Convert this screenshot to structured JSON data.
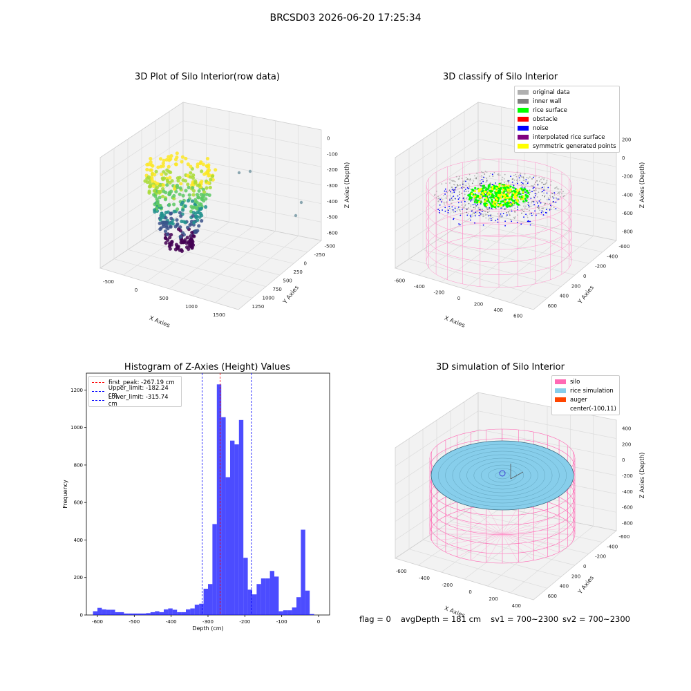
{
  "figure_title": "BRCSD03 2026-06-20 17:25:34",
  "panels": {
    "raw": {
      "title": "3D Plot of Silo Interior(row data)",
      "x_label": "X Axies",
      "y_label": "Y Axies",
      "z_label": "Z Axies (Depth)",
      "x_ticks": [
        "-500",
        "0",
        "500",
        "1000",
        "1500"
      ],
      "y_ticks": [
        "-500",
        "-250",
        "0",
        "250",
        "500",
        "750",
        "1000",
        "1250"
      ],
      "z_ticks": [
        "0",
        "-100",
        "-200",
        "-300",
        "-400",
        "-500",
        "-600"
      ]
    },
    "classify": {
      "title": "3D classify of Silo Interior",
      "x_label": "X Axies",
      "y_label": "Y Axies",
      "z_label": "Z Axies (Depth)",
      "x_ticks": [
        "-600",
        "-400",
        "-200",
        "0",
        "200",
        "400",
        "600"
      ],
      "y_ticks": [
        "-600",
        "-400",
        "-200",
        "0",
        "200",
        "400",
        "600"
      ],
      "z_ticks": [
        "200",
        "0",
        "-200",
        "-400",
        "-600",
        "-800"
      ],
      "legend": [
        {
          "label": "original data",
          "color": "#b0b0b0"
        },
        {
          "label": "inner wall",
          "color": "#808080"
        },
        {
          "label": "rice surface",
          "color": "#00ff00"
        },
        {
          "label": "obstacle",
          "color": "#ff0000"
        },
        {
          "label": "noise",
          "color": "#0000ff"
        },
        {
          "label": "interpolated rice surface",
          "color": "#800080"
        },
        {
          "label": "symmetric generated points",
          "color": "#ffff00"
        }
      ]
    },
    "histogram": {
      "title": "Histogram of Z-Axies (Height) Values",
      "legend": [
        {
          "label": "first_peak: -267.19 cm",
          "color": "#ff0000"
        },
        {
          "label": "Upper_limit: -182.24 cm",
          "color": "#0000ff"
        },
        {
          "label": "Lower_limit: -315.74 cm",
          "color": "#0000ff"
        }
      ]
    },
    "simulation": {
      "title": "3D simulation of Silo Interior",
      "x_label": "X Axies",
      "y_label": "Y Axies",
      "z_label": "Z Axies (Depth)",
      "x_ticks": [
        "-600",
        "-400",
        "-200",
        "0",
        "200",
        "400"
      ],
      "y_ticks": [
        "-600",
        "-400",
        "-200",
        "0",
        "200",
        "400",
        "600"
      ],
      "z_ticks": [
        "400",
        "200",
        "0",
        "-200",
        "-400",
        "-600",
        "-800"
      ],
      "legend": [
        {
          "label": "silo",
          "color": "#ff69b4"
        },
        {
          "label": "rice simulation",
          "color": "#87ceeb"
        },
        {
          "label": "auger",
          "color": "#ff4500"
        },
        {
          "label": "center(-100,11)",
          "color": ""
        }
      ]
    }
  },
  "status": {
    "flag": "flag = 0",
    "avg_depth": "avgDepth = 181 cm",
    "sv1": "sv1 = 700~2300",
    "sv2": "sv2 = 700~2300"
  },
  "chart_data": {
    "type": "bar",
    "title": "Histogram of Z-Axies (Height) Values",
    "xlabel": "Depth (cm)",
    "ylabel": "Frequency",
    "xlim": [
      -630,
      30
    ],
    "ylim": [
      0,
      1290
    ],
    "x_ticks": [
      -600,
      -500,
      -400,
      -300,
      -200,
      -100,
      0
    ],
    "y_ticks": [
      0,
      200,
      400,
      600,
      800,
      1000,
      1200
    ],
    "bar_color": "#0000ff",
    "bin_width": 12,
    "bins": [
      {
        "x": -612,
        "v": 20
      },
      {
        "x": -600,
        "v": 38
      },
      {
        "x": -588,
        "v": 30
      },
      {
        "x": -576,
        "v": 28
      },
      {
        "x": -564,
        "v": 28
      },
      {
        "x": -552,
        "v": 15
      },
      {
        "x": -540,
        "v": 15
      },
      {
        "x": -528,
        "v": 8
      },
      {
        "x": -516,
        "v": 8
      },
      {
        "x": -504,
        "v": 8
      },
      {
        "x": -492,
        "v": 8
      },
      {
        "x": -480,
        "v": 8
      },
      {
        "x": -468,
        "v": 10
      },
      {
        "x": -456,
        "v": 15
      },
      {
        "x": -444,
        "v": 20
      },
      {
        "x": -432,
        "v": 15
      },
      {
        "x": -420,
        "v": 30
      },
      {
        "x": -408,
        "v": 35
      },
      {
        "x": -396,
        "v": 28
      },
      {
        "x": -384,
        "v": 15
      },
      {
        "x": -372,
        "v": 15
      },
      {
        "x": -360,
        "v": 30
      },
      {
        "x": -348,
        "v": 35
      },
      {
        "x": -336,
        "v": 55
      },
      {
        "x": -324,
        "v": 60
      },
      {
        "x": -312,
        "v": 140
      },
      {
        "x": -300,
        "v": 165
      },
      {
        "x": -288,
        "v": 485
      },
      {
        "x": -276,
        "v": 1230
      },
      {
        "x": -264,
        "v": 1055
      },
      {
        "x": -252,
        "v": 735
      },
      {
        "x": -240,
        "v": 930
      },
      {
        "x": -228,
        "v": 910
      },
      {
        "x": -216,
        "v": 1040
      },
      {
        "x": -204,
        "v": 305
      },
      {
        "x": -192,
        "v": 135
      },
      {
        "x": -180,
        "v": 110
      },
      {
        "x": -168,
        "v": 165
      },
      {
        "x": -156,
        "v": 195
      },
      {
        "x": -144,
        "v": 195
      },
      {
        "x": -132,
        "v": 235
      },
      {
        "x": -120,
        "v": 205
      },
      {
        "x": -108,
        "v": 20
      },
      {
        "x": -96,
        "v": 25
      },
      {
        "x": -84,
        "v": 25
      },
      {
        "x": -72,
        "v": 40
      },
      {
        "x": -60,
        "v": 95
      },
      {
        "x": -48,
        "v": 455
      },
      {
        "x": -36,
        "v": 130
      },
      {
        "x": -24,
        "v": 5
      }
    ],
    "vlines": [
      {
        "name": "first_peak: -267.19 cm",
        "x": -267.19,
        "color": "#ff0000"
      },
      {
        "name": "Upper_limit: -182.24 cm",
        "x": -182.24,
        "color": "#0000ff"
      },
      {
        "name": "Lower_limit: -315.74 cm",
        "x": -315.74,
        "color": "#0000ff"
      }
    ]
  }
}
